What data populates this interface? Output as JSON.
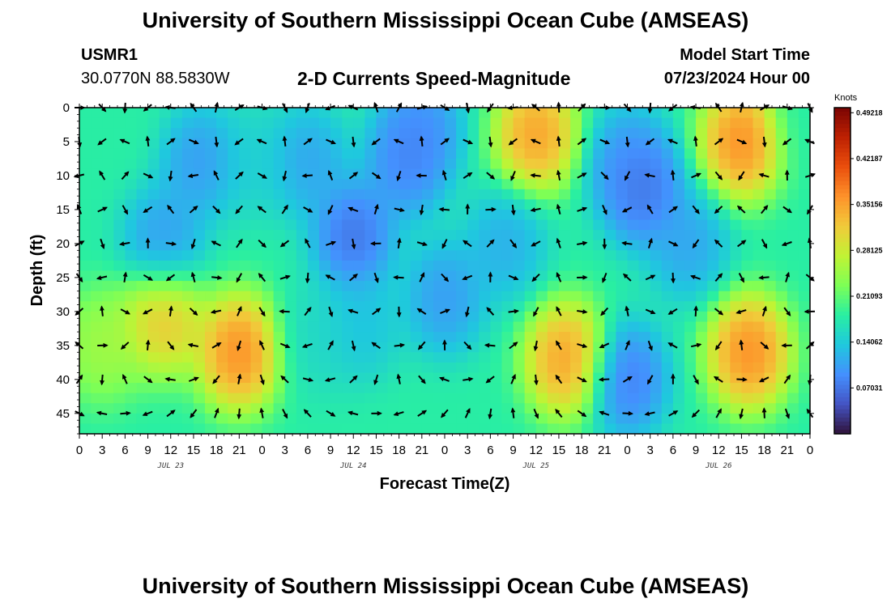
{
  "header": {
    "title": "University of Southern Mississippi Ocean Cube (AMSEAS)",
    "station_id": "USMR1",
    "coordinates": "30.0770N  88.5830W",
    "subtitle": "2-D Currents Speed-Magnitude",
    "model_start_label": "Model Start Time",
    "model_start_value": "07/23/2024 Hour 00"
  },
  "footer": {
    "title": "University of Southern Mississippi Ocean Cube (AMSEAS)"
  },
  "chart_data": {
    "type": "heatmap",
    "title": "2-D Currents Speed-Magnitude",
    "xlabel": "Forecast Time(Z)",
    "ylabel": "Depth (ft)",
    "x_range_hours": [
      0,
      96
    ],
    "y_range_ft": [
      0,
      48
    ],
    "x_ticks": [
      "0",
      "3",
      "6",
      "9",
      "12",
      "15",
      "18",
      "21",
      "0",
      "3",
      "6",
      "9",
      "12",
      "15",
      "18",
      "21",
      "0",
      "3",
      "6",
      "9",
      "12",
      "15",
      "18",
      "21",
      "0",
      "3",
      "6",
      "9",
      "12",
      "15",
      "18",
      "21",
      "0"
    ],
    "day_labels": [
      "JUL 23",
      "JUL 24",
      "JUL 25",
      "JUL 26"
    ],
    "y_ticks": [
      "0",
      "5",
      "10",
      "15",
      "20",
      "25",
      "30",
      "35",
      "40",
      "45"
    ],
    "colorbar": {
      "unit": "Knots",
      "range": [
        0,
        0.5
      ],
      "labels": [
        "0.49218",
        "0.42187",
        "0.35156",
        "0.28125",
        "0.21093",
        "0.14062",
        "0.07031"
      ],
      "colors": [
        "#30123b",
        "#4454c4",
        "#4490fe",
        "#1fc8de",
        "#29efa2",
        "#7dff56",
        "#c1f334",
        "#f1ca3a",
        "#fe922a",
        "#ea4f0d",
        "#be2102",
        "#7a0403"
      ]
    },
    "arrow_depths_ft": [
      0,
      5,
      10,
      15,
      20,
      25,
      30,
      35,
      40,
      45
    ],
    "arrow_times_hours": [
      0,
      3,
      6,
      9,
      12,
      15,
      18,
      21,
      24,
      27,
      30,
      33,
      36,
      39,
      42,
      45,
      48,
      51,
      54,
      57,
      60,
      63,
      66,
      69,
      72,
      75,
      78,
      81,
      84,
      87,
      90,
      93,
      96
    ],
    "speed_blobs_knots": [
      {
        "hour": 21,
        "depth_ft": 36,
        "speed": 0.42
      },
      {
        "hour": 11,
        "depth_ft": 31,
        "speed": 0.36
      },
      {
        "hour": 3,
        "depth_ft": 35,
        "speed": 0.27
      },
      {
        "hour": 31,
        "depth_ft": 34,
        "speed": 0.15
      },
      {
        "hour": 37,
        "depth_ft": 32,
        "speed": 0.12
      },
      {
        "hour": 64,
        "depth_ft": 37,
        "speed": 0.4
      },
      {
        "hour": 88,
        "depth_ft": 36,
        "speed": 0.42
      },
      {
        "hour": 60,
        "depth_ft": 4,
        "speed": 0.4
      },
      {
        "hour": 87,
        "depth_ft": 5,
        "speed": 0.42
      },
      {
        "hour": 4,
        "depth_ft": 0,
        "speed": 0.18
      },
      {
        "hour": 23,
        "depth_ft": 8,
        "speed": 0.14
      },
      {
        "hour": 48,
        "depth_ft": 28,
        "speed": 0.08
      },
      {
        "hour": 96,
        "depth_ft": 2,
        "speed": 0.18
      },
      {
        "hour": 72,
        "depth_ft": 40,
        "speed": 0.05
      },
      {
        "hour": 43,
        "depth_ft": 8,
        "speed": 0.06
      },
      {
        "hour": 74,
        "depth_ft": 12,
        "speed": 0.04
      }
    ],
    "low_speed_zones_knots": [
      {
        "hour": 11,
        "depth_ft": 20,
        "speed": 0.08
      },
      {
        "hour": 36,
        "depth_ft": 19,
        "speed": 0.04
      },
      {
        "hour": 56,
        "depth_ft": 20,
        "speed": 0.1
      },
      {
        "hour": 80,
        "depth_ft": 20,
        "speed": 0.09
      },
      {
        "hour": 16,
        "depth_ft": 8,
        "speed": 0.08
      },
      {
        "hour": 30,
        "depth_ft": 8,
        "speed": 0.09
      },
      {
        "hour": 45,
        "depth_ft": 3,
        "speed": 0.07
      },
      {
        "hour": 72,
        "depth_ft": 8,
        "speed": 0.08
      }
    ]
  }
}
